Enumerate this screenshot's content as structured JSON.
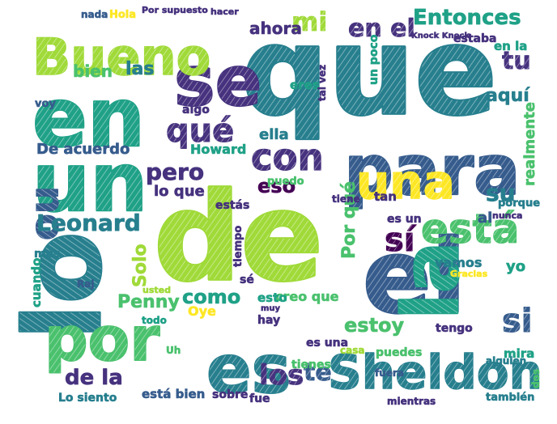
{
  "palette": [
    "#440154",
    "#46327e",
    "#365c8d",
    "#277f8e",
    "#1fa187",
    "#4ac16d",
    "#a0da39",
    "#fde725"
  ],
  "words": [
    {
      "text": "que",
      "color": "#277f8e"
    },
    {
      "text": "de",
      "color": "#a0da39"
    },
    {
      "text": "el",
      "color": "#365c8d"
    },
    {
      "text": "en",
      "color": "#1fa187"
    },
    {
      "text": "lo",
      "color": "#277f8e"
    },
    {
      "text": "un",
      "color": "#1fa187"
    },
    {
      "text": "la",
      "color": "#1fa187"
    },
    {
      "text": "se",
      "color": "#46327e"
    },
    {
      "text": "por",
      "color": "#4ac16d"
    },
    {
      "text": "para",
      "color": "#365c8d"
    },
    {
      "text": "no",
      "color": "#365c8d"
    },
    {
      "text": "es",
      "color": "#277f8e"
    },
    {
      "text": "Bueno",
      "color": "#a0da39"
    },
    {
      "text": "una",
      "color": "#fde725"
    },
    {
      "text": "Sheldon",
      "color": "#277f8e"
    },
    {
      "text": "está",
      "color": "#4ac16d"
    },
    {
      "text": "con",
      "color": "#46327e"
    },
    {
      "text": "qué",
      "color": "#46327e"
    },
    {
      "text": "sí",
      "color": "#440154"
    },
    {
      "text": "si",
      "color": "#365c8d"
    },
    {
      "text": "Leonard",
      "color": "#277f8e"
    },
    {
      "text": "en el",
      "color": "#46327e"
    },
    {
      "text": "Entonces",
      "color": "#1fa187"
    },
    {
      "text": "mi",
      "color": "#a0da39"
    },
    {
      "text": "los",
      "color": "#46327e"
    },
    {
      "text": "te",
      "color": "#365c8d"
    },
    {
      "text": "como",
      "color": "#1fa187"
    },
    {
      "text": "de la",
      "color": "#46327e"
    },
    {
      "text": "estoy",
      "color": "#4ac16d"
    },
    {
      "text": "Penny",
      "color": "#4ac16d"
    },
    {
      "text": "su",
      "color": "#277f8e"
    },
    {
      "text": "tu",
      "color": "#46327e"
    },
    {
      "text": "pero",
      "color": "#46327e"
    },
    {
      "text": "eso",
      "color": "#440154"
    },
    {
      "text": "Solo",
      "color": "#a0da39"
    },
    {
      "text": "De acuerdo",
      "color": "#365c8d"
    },
    {
      "text": "aquí",
      "color": "#277f8e"
    },
    {
      "text": "ahora",
      "color": "#46327e"
    },
    {
      "text": "las",
      "color": "#277f8e"
    },
    {
      "text": "bien",
      "color": "#4ac16d"
    },
    {
      "text": "ella",
      "color": "#277f8e"
    },
    {
      "text": "al",
      "color": "#365c8d"
    },
    {
      "text": "yo",
      "color": "#1fa187"
    },
    {
      "text": "realmente",
      "color": "#4ac16d"
    },
    {
      "text": "Por qué",
      "color": "#4ac16d"
    },
    {
      "text": "lo que",
      "color": "#46327e"
    },
    {
      "text": "Howard",
      "color": "#1fa187"
    },
    {
      "text": "puedo",
      "color": "#4ac16d"
    },
    {
      "text": "es un",
      "color": "#46327e"
    },
    {
      "text": "Oye",
      "color": "#fde725"
    },
    {
      "text": "vamos",
      "color": "#277f8e"
    },
    {
      "text": "creo que",
      "color": "#4ac16d"
    },
    {
      "text": "esto",
      "color": "#1fa187"
    },
    {
      "text": "tengo",
      "color": "#46327e"
    },
    {
      "text": "mira",
      "color": "#1fa187"
    },
    {
      "text": "es una",
      "color": "#46327e"
    },
    {
      "text": "tiene",
      "color": "#46327e"
    },
    {
      "text": "todo",
      "color": "#1fa187"
    },
    {
      "text": "cuando",
      "color": "#1fa187"
    },
    {
      "text": "Lo siento",
      "color": "#277f8e"
    },
    {
      "text": "está bien",
      "color": "#365c8d"
    },
    {
      "text": "sobre",
      "color": "#46327e"
    },
    {
      "text": "fue",
      "color": "#46327e"
    },
    {
      "text": "tienes",
      "color": "#4ac16d"
    },
    {
      "text": "puedes",
      "color": "#4ac16d"
    },
    {
      "text": "también",
      "color": "#277f8e"
    },
    {
      "text": "mientras",
      "color": "#46327e"
    },
    {
      "text": "Hola",
      "color": "#fde725"
    },
    {
      "text": "Por supuesto",
      "color": "#46327e"
    },
    {
      "text": "hacer",
      "color": "#46327e"
    },
    {
      "text": "nada",
      "color": "#365c8d"
    },
    {
      "text": "estaba",
      "color": "#46327e"
    },
    {
      "text": "Knock Knock",
      "color": "#46327e"
    },
    {
      "text": "un poco",
      "color": "#1fa187"
    },
    {
      "text": "en la",
      "color": "#1fa187"
    },
    {
      "text": "algo",
      "color": "#46327e"
    },
    {
      "text": "eres",
      "color": "#1fa187"
    },
    {
      "text": "tal vez",
      "color": "#46327e"
    },
    {
      "text": "porque",
      "color": "#277f8e"
    },
    {
      "text": "tan",
      "color": "#46327e"
    },
    {
      "text": "hay",
      "color": "#46327e"
    },
    {
      "text": "Raj",
      "color": "#365c8d"
    },
    {
      "text": "Uh",
      "color": "#4ac16d"
    },
    {
      "text": "alguien",
      "color": "#277f8e"
    },
    {
      "text": "dos",
      "color": "#4ac16d"
    },
    {
      "text": "Gracias",
      "color": "#fde725"
    },
    {
      "text": "sé",
      "color": "#46327e"
    },
    {
      "text": "voy",
      "color": "#365c8d"
    },
    {
      "text": "más",
      "color": "#277f8e"
    },
    {
      "text": "estás",
      "color": "#46327e"
    },
    {
      "text": "usted",
      "color": "#a0da39"
    },
    {
      "text": "tiempo",
      "color": "#46327e"
    },
    {
      "text": "nunca",
      "color": "#46327e"
    },
    {
      "text": "fuera",
      "color": "#365c8d"
    },
    {
      "text": "casa",
      "color": "#a0da39"
    },
    {
      "text": "muy",
      "color": "#46327e"
    }
  ]
}
